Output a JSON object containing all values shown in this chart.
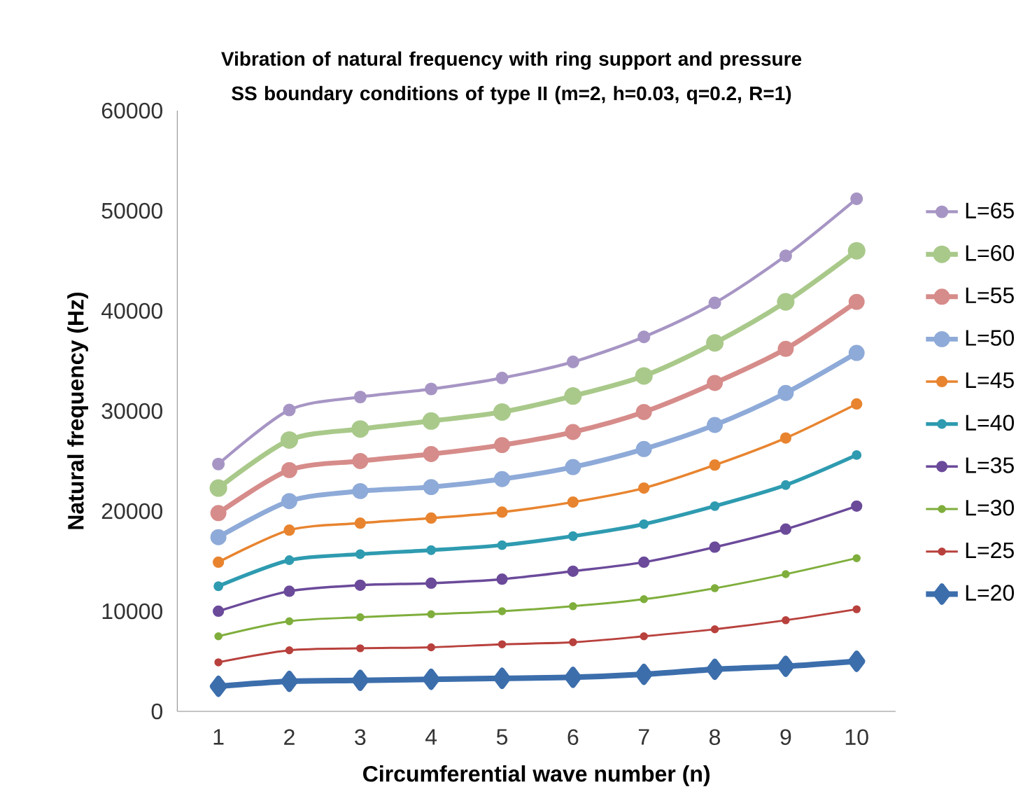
{
  "chart_data": {
    "type": "line",
    "title": "Vibration of natural frequency with ring support  and pressure SS boundary conditions of type II (m=2, h=0.03, q=0.2, R=1)",
    "xlabel": "Circumferential wave number (n)",
    "ylabel": "Natural frequency (Hz)",
    "categories": [
      "1",
      "2",
      "3",
      "4",
      "5",
      "6",
      "7",
      "8",
      "9",
      "10"
    ],
    "ylim": [
      0,
      60000
    ],
    "yticks": [
      0,
      10000,
      20000,
      30000,
      40000,
      50000,
      60000
    ],
    "grid": false,
    "legend": "right",
    "marker": "circle",
    "line_style": "solid",
    "series": [
      {
        "name": "L=65",
        "color": "#a695c4",
        "values": [
          24700,
          30100,
          31400,
          32200,
          33300,
          34900,
          37400,
          40800,
          45500,
          51200
        ]
      },
      {
        "name": "L=60",
        "color": "#a9c98a",
        "values": [
          22300,
          27100,
          28200,
          29000,
          29900,
          31500,
          33500,
          36800,
          40900,
          46000
        ]
      },
      {
        "name": "L=55",
        "color": "#d68c8a",
        "values": [
          19800,
          24100,
          25000,
          25700,
          26600,
          27900,
          29900,
          32800,
          36200,
          40900
        ]
      },
      {
        "name": "L=50",
        "color": "#8eaad8",
        "values": [
          17400,
          21000,
          22000,
          22400,
          23200,
          24400,
          26200,
          28600,
          31800,
          35800
        ]
      },
      {
        "name": "L=45",
        "color": "#e8842f",
        "values": [
          14900,
          18100,
          18800,
          19300,
          19900,
          20900,
          22300,
          24600,
          27300,
          30700
        ]
      },
      {
        "name": "L=40",
        "color": "#2e9bb0",
        "values": [
          12500,
          15100,
          15700,
          16100,
          16600,
          17500,
          18700,
          20500,
          22600,
          25600
        ]
      },
      {
        "name": "L=35",
        "color": "#6b4a9a",
        "values": [
          10000,
          12000,
          12600,
          12800,
          13200,
          14000,
          14900,
          16400,
          18200,
          20500
        ]
      },
      {
        "name": "L=30",
        "color": "#7fae3c",
        "values": [
          7500,
          9000,
          9400,
          9700,
          10000,
          10500,
          11200,
          12300,
          13700,
          15300
        ]
      },
      {
        "name": "L=25",
        "color": "#b8413d",
        "values": [
          4900,
          6100,
          6300,
          6400,
          6700,
          6900,
          7500,
          8200,
          9100,
          10200
        ]
      },
      {
        "name": "L=20",
        "color": "#3c6eac",
        "marker": "diamond",
        "values": [
          2500,
          3000,
          3100,
          3200,
          3300,
          3400,
          3700,
          4200,
          4500,
          5000
        ]
      }
    ]
  }
}
